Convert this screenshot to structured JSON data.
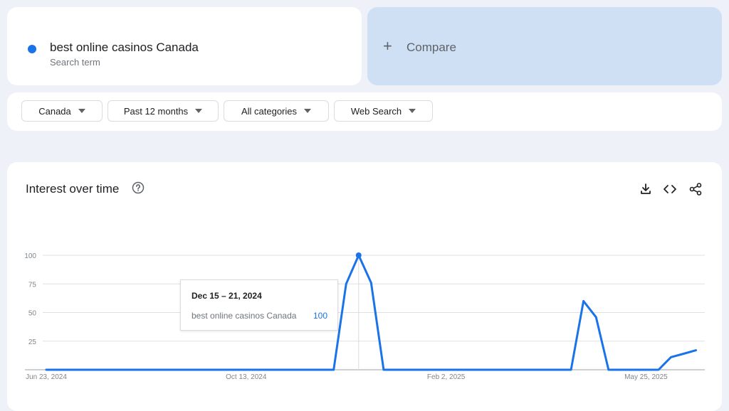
{
  "search": {
    "term": "best online casinos Canada",
    "term_type": "Search term",
    "color": "#1a73e8"
  },
  "compare": {
    "icon": "plus-icon",
    "label": "Compare"
  },
  "filters": {
    "region": "Canada",
    "time_range": "Past 12 months",
    "category": "All categories",
    "search_type": "Web Search"
  },
  "interest": {
    "title": "Interest over time",
    "actions": [
      "download-icon",
      "embed-code-icon",
      "share-icon"
    ]
  },
  "tooltip": {
    "date": "Dec 15 – 21, 2024",
    "term": "best online casinos Canada",
    "value": "100"
  },
  "chart_data": {
    "type": "line",
    "title": "",
    "xlabel": "",
    "ylabel": "",
    "ylim": [
      0,
      100
    ],
    "yticks": [
      25,
      50,
      75,
      100
    ],
    "grid": true,
    "x_tick_labels": [
      {
        "label": "Jun 23, 2024",
        "week": 0
      },
      {
        "label": "Oct 13, 2024",
        "week": 16
      },
      {
        "label": "Feb 2, 2025",
        "week": 32
      },
      {
        "label": "May 25, 2025",
        "week": 48
      }
    ],
    "series": [
      {
        "name": "best online casinos Canada",
        "color": "#1a73e8",
        "x": [
          "Jun 23, 2024",
          "Jun 30, 2024",
          "Jul 7, 2024",
          "Jul 14, 2024",
          "Jul 21, 2024",
          "Jul 28, 2024",
          "Aug 4, 2024",
          "Aug 11, 2024",
          "Aug 18, 2024",
          "Aug 25, 2024",
          "Sep 1, 2024",
          "Sep 8, 2024",
          "Sep 15, 2024",
          "Sep 22, 2024",
          "Sep 29, 2024",
          "Oct 6, 2024",
          "Oct 13, 2024",
          "Oct 20, 2024",
          "Oct 27, 2024",
          "Nov 3, 2024",
          "Nov 10, 2024",
          "Nov 17, 2024",
          "Nov 24, 2024",
          "Dec 1, 2024",
          "Dec 8, 2024",
          "Dec 15, 2024",
          "Dec 22, 2024",
          "Dec 29, 2024",
          "Jan 5, 2025",
          "Jan 12, 2025",
          "Jan 19, 2025",
          "Jan 26, 2025",
          "Feb 2, 2025",
          "Feb 9, 2025",
          "Feb 16, 2025",
          "Feb 23, 2025",
          "Mar 2, 2025",
          "Mar 9, 2025",
          "Mar 16, 2025",
          "Mar 23, 2025",
          "Mar 30, 2025",
          "Apr 6, 2025",
          "Apr 13, 2025",
          "Apr 20, 2025",
          "Apr 27, 2025",
          "May 4, 2025",
          "May 11, 2025",
          "May 18, 2025",
          "May 25, 2025",
          "Jun 1, 2025",
          "Jun 8, 2025",
          "Jun 15, 2025",
          "Jun 22, 2025"
        ],
        "values": [
          0,
          0,
          0,
          0,
          0,
          0,
          0,
          0,
          0,
          0,
          0,
          0,
          0,
          0,
          0,
          0,
          0,
          0,
          0,
          0,
          0,
          0,
          0,
          0,
          75,
          100,
          76,
          0,
          0,
          0,
          0,
          0,
          0,
          0,
          0,
          0,
          0,
          0,
          0,
          0,
          0,
          0,
          0,
          60,
          46,
          0,
          0,
          0,
          0,
          0,
          11,
          14,
          17
        ]
      }
    ]
  }
}
